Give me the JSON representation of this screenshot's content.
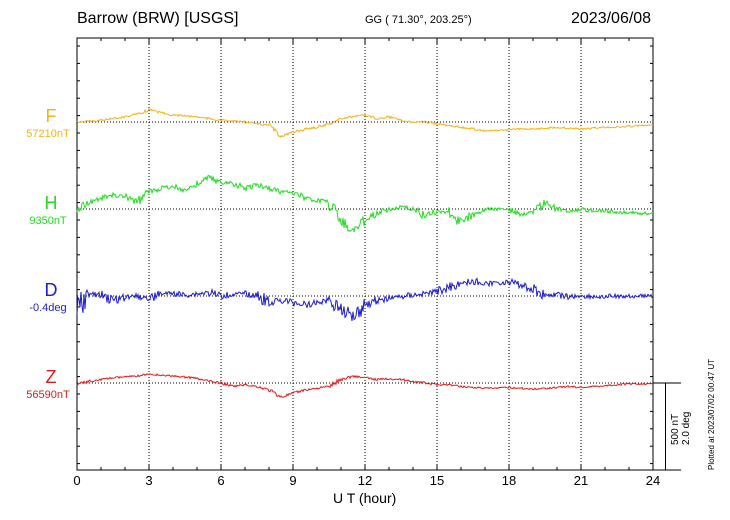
{
  "header": {
    "station": "Barrow (BRW)  [USGS]",
    "coords": "GG ( 71.30°, 203.25°)",
    "date": "2023/06/08"
  },
  "components": [
    {
      "letter": "F",
      "baseline": "57210nT",
      "color": "#f5b21a"
    },
    {
      "letter": "H",
      "baseline": "9350nT",
      "color": "#22dd22"
    },
    {
      "letter": "D",
      "baseline": "-0.4deg",
      "color": "#1c1cd6"
    },
    {
      "letter": "Z",
      "baseline": "56590nT",
      "color": "#e01b1b"
    }
  ],
  "axis": {
    "xlabel": "U T (hour)",
    "xticks": [
      "0",
      "3",
      "6",
      "9",
      "12",
      "15",
      "18",
      "21",
      "24"
    ]
  },
  "scale": {
    "line1": "500 nT",
    "line2": "2.0 deg"
  },
  "plotted_at": "Plotted at 2023/07/02 00:47 UT",
  "chart_data": {
    "type": "line",
    "title": "Barrow (BRW)  [USGS]",
    "xlabel": "U T (hour)",
    "xlim": [
      0,
      24
    ],
    "grid": true,
    "x": [
      0,
      0.5,
      1,
      1.5,
      2,
      2.5,
      3,
      3.5,
      4,
      4.5,
      5,
      5.5,
      6,
      6.5,
      7,
      7.5,
      8,
      8.5,
      9,
      9.5,
      10,
      10.5,
      11,
      11.5,
      12,
      12.5,
      13,
      13.5,
      14,
      14.5,
      15,
      15.5,
      16,
      16.5,
      17,
      17.5,
      18,
      18.5,
      19,
      19.5,
      20,
      20.5,
      21,
      21.5,
      22,
      22.5,
      23,
      23.5,
      24
    ],
    "series": [
      {
        "name": "F",
        "baseline": "57210nT",
        "values": [
          0,
          5,
          10,
          20,
          30,
          45,
          70,
          55,
          40,
          35,
          30,
          20,
          10,
          5,
          0,
          -10,
          -20,
          -80,
          -60,
          -40,
          -30,
          -10,
          20,
          30,
          40,
          20,
          30,
          10,
          0,
          0,
          -10,
          -20,
          -30,
          -40,
          -50,
          -50,
          -45,
          -40,
          -40,
          -35,
          -30,
          -35,
          -40,
          -35,
          -30,
          -30,
          -25,
          -20,
          -20
        ]
      },
      {
        "name": "H",
        "baseline": "9350nT",
        "values": [
          0,
          40,
          60,
          80,
          70,
          40,
          100,
          120,
          130,
          110,
          140,
          180,
          150,
          150,
          120,
          140,
          120,
          100,
          100,
          60,
          50,
          40,
          -60,
          -130,
          -60,
          -20,
          0,
          10,
          0,
          -40,
          -10,
          -20,
          -80,
          -30,
          0,
          0,
          0,
          -30,
          -20,
          40,
          0,
          -10,
          0,
          -10,
          -10,
          -20,
          -20,
          -25,
          -20
        ]
      },
      {
        "name": "D",
        "baseline": "-0.4deg",
        "values": [
          -0.3,
          0.05,
          0.01,
          -0.1,
          -0.02,
          0.0,
          -0.05,
          0.05,
          0.06,
          0.02,
          0.05,
          0.08,
          0.0,
          0.04,
          0.05,
          0.01,
          -0.15,
          -0.1,
          -0.15,
          -0.2,
          -0.15,
          -0.1,
          -0.3,
          -0.45,
          -0.2,
          -0.1,
          -0.05,
          -0.02,
          0.02,
          0.05,
          0.1,
          0.2,
          0.3,
          0.35,
          0.28,
          0.3,
          0.32,
          0.25,
          0.15,
          0.02,
          0.03,
          -0.02,
          0.0,
          -0.02,
          -0.03,
          0.0,
          -0.01,
          0.0,
          0.0
        ]
      },
      {
        "name": "Z",
        "baseline": "56590nT",
        "values": [
          -5,
          10,
          20,
          30,
          35,
          40,
          50,
          45,
          40,
          35,
          25,
          10,
          0,
          -20,
          -10,
          -20,
          -40,
          -80,
          -60,
          -40,
          -30,
          -20,
          20,
          40,
          30,
          20,
          25,
          20,
          10,
          0,
          -10,
          -10,
          -20,
          -25,
          -30,
          -30,
          -25,
          -30,
          -35,
          -30,
          -25,
          -20,
          -25,
          -20,
          -15,
          -10,
          -5,
          -5,
          -5
        ]
      }
    ]
  }
}
